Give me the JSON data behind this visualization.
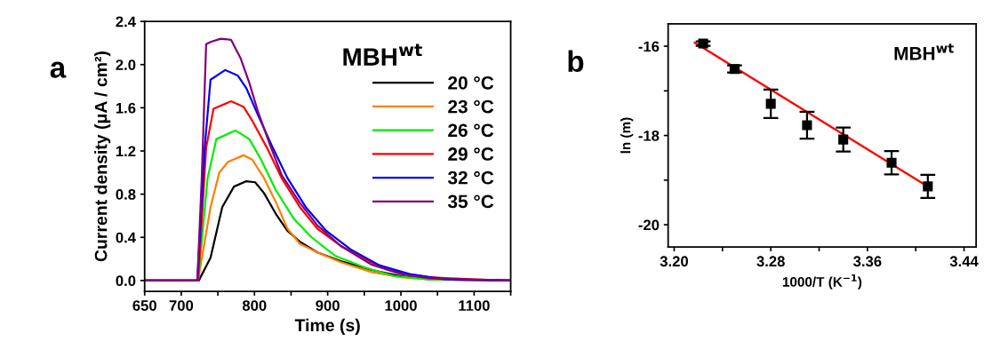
{
  "chart_data": [
    {
      "type": "line",
      "xlabel": "Time (s)",
      "ylabel": "Current density (μA / cm²)",
      "annotations": [
        "a",
        "MBH$^{wt}$"
      ],
      "xlim": [
        650,
        1150
      ],
      "ylim": [
        -0.1,
        2.4
      ],
      "xticks": [
        650,
        700,
        {
          "value": 750,
          "label": null
        },
        800,
        {
          "value": 850,
          "label": null
        },
        900,
        {
          "value": 950,
          "label": null
        },
        1000,
        {
          "value": 1050,
          "label": null
        },
        1100,
        {
          "value": 1150,
          "label": null
        }
      ],
      "yticks": [
        {
          "value": 0,
          "label": "0.0"
        },
        0.4,
        0.8,
        1.2,
        1.6,
        {
          "value": 2,
          "label": "2.0"
        },
        2.4
      ],
      "grid": false,
      "legend": "right",
      "marker": "none",
      "line_style": "solid",
      "series": [
        {
          "name": "20 °C",
          "color": "#000000",
          "x": [
            650,
            724,
            740,
            756,
            772,
            789,
            801,
            813,
            829,
            845,
            862,
            886,
            918,
            959,
            1000,
            1040,
            1150
          ],
          "values": [
            0,
            0,
            0.21,
            0.68,
            0.87,
            0.92,
            0.91,
            0.81,
            0.62,
            0.46,
            0.36,
            0.26,
            0.18,
            0.1,
            0.04,
            0.01,
            0
          ]
        },
        {
          "name": "23 °C",
          "color": "#ff7f00",
          "x": [
            650,
            723,
            740,
            752,
            764,
            785,
            797,
            813,
            829,
            845,
            862,
            886,
            918,
            959,
            1000,
            1040,
            1150
          ],
          "values": [
            0,
            0,
            0.68,
            1.0,
            1.1,
            1.16,
            1.12,
            0.95,
            0.73,
            0.48,
            0.34,
            0.26,
            0.17,
            0.08,
            0.03,
            0.01,
            0
          ]
        },
        {
          "name": "26 °C",
          "color": "#00ee00",
          "x": [
            650,
            723,
            736,
            748,
            774,
            793,
            809,
            829,
            854,
            878,
            910,
            951,
            991,
            1040,
            1150
          ],
          "values": [
            0,
            0,
            0.95,
            1.31,
            1.39,
            1.31,
            1.12,
            0.84,
            0.57,
            0.4,
            0.23,
            0.12,
            0.04,
            0.01,
            0
          ]
        },
        {
          "name": "29 °C",
          "color": "#ff0000",
          "x": [
            650,
            723,
            734,
            744,
            768,
            785,
            797,
            817,
            837,
            862,
            886,
            918,
            959,
            1000,
            1040,
            1100,
            1150
          ],
          "values": [
            0,
            0,
            1.23,
            1.59,
            1.66,
            1.61,
            1.48,
            1.23,
            0.95,
            0.68,
            0.48,
            0.32,
            0.17,
            0.07,
            0.03,
            0.01,
            0
          ]
        },
        {
          "name": "32 °C",
          "color": "#0000ff",
          "x": [
            650,
            722,
            732,
            740,
            760,
            777,
            789,
            805,
            825,
            845,
            870,
            898,
            931,
            971,
            1012,
            1060,
            1150
          ],
          "values": [
            0,
            0,
            1.23,
            1.86,
            1.95,
            1.9,
            1.78,
            1.53,
            1.23,
            0.95,
            0.68,
            0.46,
            0.29,
            0.14,
            0.06,
            0.01,
            0
          ]
        },
        {
          "name": "35 °C",
          "color": "#800080",
          "x": [
            650,
            722,
            728,
            734,
            740,
            754,
            768,
            781,
            793,
            805,
            821,
            837,
            862,
            886,
            918,
            959,
            1000,
            1040,
            1150
          ],
          "values": [
            0,
            0,
            0.95,
            2.19,
            2.21,
            2.24,
            2.23,
            2.06,
            1.83,
            1.56,
            1.26,
            0.98,
            0.72,
            0.51,
            0.32,
            0.15,
            0.06,
            0.02,
            0
          ]
        }
      ]
    },
    {
      "type": "scatter",
      "xlabel": "1000/T (K$^{−1}$)",
      "ylabel": "ln (m)",
      "annotations": [
        "b",
        "MBH$^{wt}$"
      ],
      "xlim": [
        3.195,
        3.45
      ],
      "ylim": [
        -20.5,
        -15.5
      ],
      "xticks": [
        {
          "value": 3.2,
          "label": "3.20"
        },
        {
          "value": 3.24,
          "label": null
        },
        3.28,
        {
          "value": 3.32,
          "label": null
        },
        3.36,
        {
          "value": 3.4,
          "label": null
        },
        3.44
      ],
      "yticks": [
        -20,
        {
          "value": -19,
          "label": null
        },
        -18,
        {
          "value": -17,
          "label": null
        },
        -16
      ],
      "grid": false,
      "legend": false,
      "series": [
        {
          "type": "scatter",
          "color": "#000000",
          "marker": "square",
          "x": [
            3.224,
            3.25,
            3.28,
            3.31,
            3.34,
            3.38,
            3.41
          ],
          "values": [
            -15.94,
            -16.51,
            -17.29,
            -17.77,
            -18.09,
            -18.61,
            -19.14
          ],
          "errors": [
            0.05,
            0.08,
            0.32,
            0.3,
            0.27,
            0.26,
            0.26
          ]
        },
        {
          "type": "line",
          "color": "#ff0000",
          "marker": "none",
          "line_style": "solid",
          "x": [
            3.217,
            3.411
          ],
          "values": [
            -15.92,
            -19.16
          ]
        }
      ]
    }
  ]
}
